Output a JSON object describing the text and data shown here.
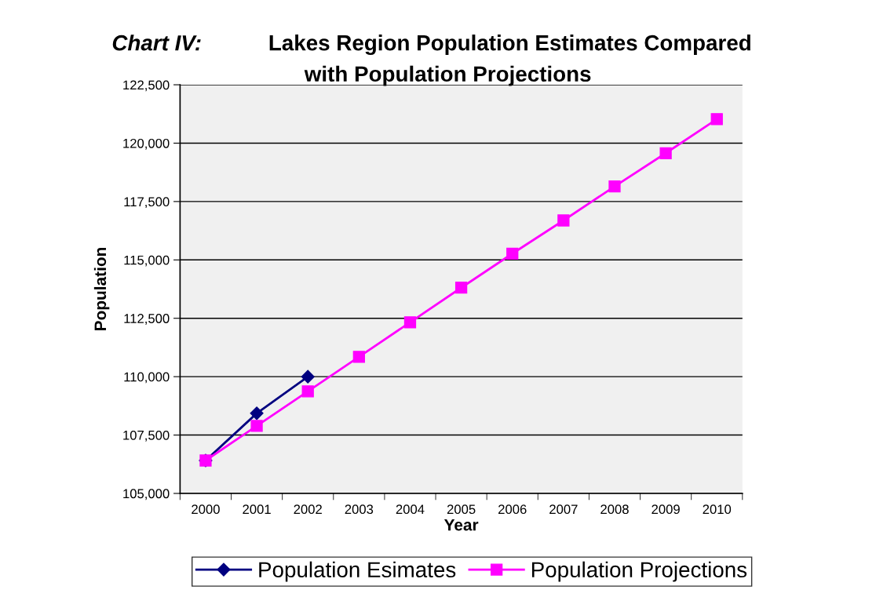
{
  "chart_data": {
    "type": "line",
    "title": "Lakes Region Population Estimates Compared with Population Projections",
    "annotations": [
      "Chart IV:"
    ],
    "xlabel": "Year",
    "ylabel": "Population",
    "categories": [
      "2000",
      "2001",
      "2002",
      "2003",
      "2004",
      "2005",
      "2006",
      "2007",
      "2008",
      "2009",
      "2010"
    ],
    "series": [
      {
        "name": "Population Esimates",
        "color": "#000080",
        "marker": "diamond",
        "values": [
          106410,
          108430,
          110000,
          null,
          null,
          null,
          null,
          null,
          null,
          null,
          null
        ]
      },
      {
        "name": "Population Projections",
        "color": "#ff00ff",
        "marker": "square",
        "values": [
          106410,
          107890,
          109370,
          110850,
          112330,
          113810,
          115270,
          116690,
          118150,
          119570,
          121030
        ]
      }
    ],
    "ylim": [
      105000,
      122500
    ],
    "yticks": [
      {
        "value": 105000,
        "label": "105,000"
      },
      {
        "value": 107500,
        "label": "107,500"
      },
      {
        "value": 110000,
        "label": "110,000"
      },
      {
        "value": 112500,
        "label": "112,500"
      },
      {
        "value": 115000,
        "label": "115,000"
      },
      {
        "value": 117500,
        "label": "117,500"
      },
      {
        "value": 120000,
        "label": "120,000"
      },
      {
        "value": 122500,
        "label": "122,500"
      }
    ],
    "grid": "y",
    "legend": "bottom",
    "line_style": "solid"
  }
}
